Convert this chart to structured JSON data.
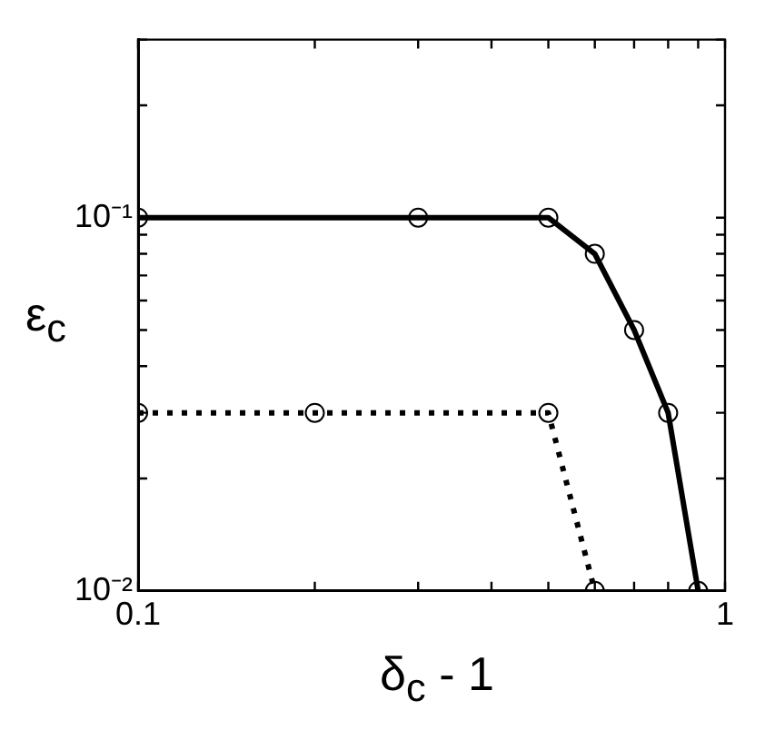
{
  "chart_data": {
    "type": "line",
    "xlabel": "δ$_{c}$ - 1",
    "ylabel": "ε$_{c}$",
    "log": "xy",
    "grid": false,
    "legend": false,
    "marker": "circle",
    "xlim": [
      0.1,
      1
    ],
    "xticks": [
      0.1,
      {
        "value": 0.2,
        "label": null
      },
      {
        "value": 0.3,
        "label": null
      },
      {
        "value": 0.4,
        "label": null
      },
      {
        "value": 0.5,
        "label": null
      },
      {
        "value": 0.6,
        "label": null
      },
      {
        "value": 0.7,
        "label": null
      },
      {
        "value": 0.8,
        "label": null
      },
      {
        "value": 0.9,
        "label": null
      },
      1
    ],
    "ylim": [
      0.01,
      0.3
    ],
    "yticks": [
      {
        "value": 0.01,
        "label": "10⁻²"
      },
      {
        "value": 0.02,
        "label": null
      },
      {
        "value": 0.03,
        "label": null
      },
      {
        "value": 0.04,
        "label": null
      },
      {
        "value": 0.05,
        "label": null
      },
      {
        "value": 0.06,
        "label": null
      },
      {
        "value": 0.07,
        "label": null
      },
      {
        "value": 0.08,
        "label": null
      },
      {
        "value": 0.09,
        "label": null
      },
      {
        "value": 0.1,
        "label": "10⁻¹"
      },
      {
        "value": 0.2,
        "label": null
      },
      {
        "value": 0.3,
        "label": null
      }
    ],
    "series": [
      {
        "color": "#000000",
        "line_style": "solid",
        "x": [
          0.1,
          0.3,
          0.5,
          0.6,
          0.7,
          0.8,
          0.9
        ],
        "values": [
          0.1,
          0.1,
          0.1,
          0.08,
          0.05,
          0.03,
          0.01
        ]
      },
      {
        "color": "#000000",
        "line_style": "dotted",
        "x": [
          0.1,
          0.2,
          0.5,
          0.6
        ],
        "values": [
          0.03,
          0.03,
          0.03,
          0.01
        ]
      }
    ]
  }
}
